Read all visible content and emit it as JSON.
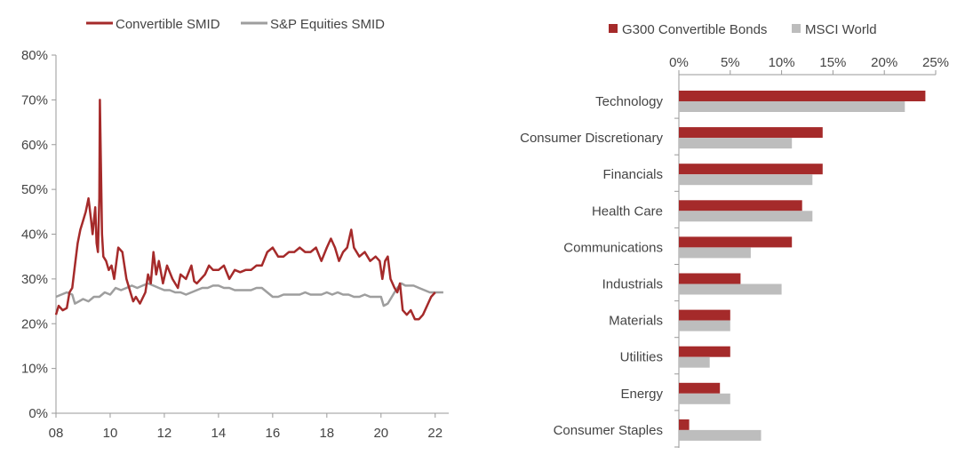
{
  "colors": {
    "convertible": "#a52a2a",
    "equities": "#9e9e9e",
    "axis": "#9a9a9a",
    "text": "#444444"
  },
  "chart_data": [
    {
      "type": "line",
      "title": "",
      "xlabel": "",
      "ylabel": "",
      "ylim": [
        0,
        80
      ],
      "y_tick_labels": [
        "0%",
        "10%",
        "20%",
        "30%",
        "40%",
        "50%",
        "60%",
        "70%",
        "80%"
      ],
      "y_tick_values": [
        0,
        10,
        20,
        30,
        40,
        50,
        60,
        70,
        80
      ],
      "x_tick_labels": [
        "08",
        "10",
        "12",
        "14",
        "16",
        "18",
        "20",
        "22"
      ],
      "x_tick_values": [
        2008,
        2010,
        2012,
        2014,
        2016,
        2018,
        2020,
        2022
      ],
      "xlim": [
        2008,
        2022.5
      ],
      "grid": false,
      "legend_placement": "top",
      "series": [
        {
          "name": "Convertible SMID",
          "color": "#a52a2a",
          "points": [
            [
              2008.0,
              22
            ],
            [
              2008.1,
              24
            ],
            [
              2008.25,
              23
            ],
            [
              2008.4,
              23.5
            ],
            [
              2008.5,
              27
            ],
            [
              2008.6,
              28
            ],
            [
              2008.7,
              33
            ],
            [
              2008.8,
              38
            ],
            [
              2008.9,
              41
            ],
            [
              2009.0,
              43
            ],
            [
              2009.1,
              45
            ],
            [
              2009.2,
              48
            ],
            [
              2009.3,
              43
            ],
            [
              2009.35,
              40
            ],
            [
              2009.45,
              46
            ],
            [
              2009.5,
              38
            ],
            [
              2009.55,
              36
            ],
            [
              2009.6,
              48
            ],
            [
              2009.62,
              70
            ],
            [
              2009.66,
              55
            ],
            [
              2009.7,
              40
            ],
            [
              2009.75,
              35
            ],
            [
              2009.85,
              34
            ],
            [
              2009.95,
              32
            ],
            [
              2010.05,
              33
            ],
            [
              2010.15,
              30
            ],
            [
              2010.3,
              37
            ],
            [
              2010.45,
              36
            ],
            [
              2010.6,
              30
            ],
            [
              2010.75,
              27
            ],
            [
              2010.85,
              25
            ],
            [
              2010.95,
              26
            ],
            [
              2011.1,
              24.5
            ],
            [
              2011.3,
              27
            ],
            [
              2011.4,
              31
            ],
            [
              2011.5,
              29
            ],
            [
              2011.6,
              36
            ],
            [
              2011.7,
              31
            ],
            [
              2011.8,
              34
            ],
            [
              2011.95,
              29
            ],
            [
              2012.1,
              33
            ],
            [
              2012.3,
              30
            ],
            [
              2012.5,
              28
            ],
            [
              2012.6,
              31
            ],
            [
              2012.8,
              30
            ],
            [
              2013.0,
              33
            ],
            [
              2013.1,
              29.5
            ],
            [
              2013.2,
              29
            ],
            [
              2013.35,
              30
            ],
            [
              2013.5,
              31
            ],
            [
              2013.65,
              33
            ],
            [
              2013.8,
              32
            ],
            [
              2014.0,
              32
            ],
            [
              2014.2,
              33
            ],
            [
              2014.4,
              30
            ],
            [
              2014.6,
              32
            ],
            [
              2014.8,
              31.5
            ],
            [
              2015.0,
              32
            ],
            [
              2015.2,
              32
            ],
            [
              2015.4,
              33
            ],
            [
              2015.6,
              33
            ],
            [
              2015.8,
              36
            ],
            [
              2016.0,
              37
            ],
            [
              2016.2,
              35
            ],
            [
              2016.4,
              35
            ],
            [
              2016.6,
              36
            ],
            [
              2016.8,
              36
            ],
            [
              2017.0,
              37
            ],
            [
              2017.2,
              36
            ],
            [
              2017.4,
              36
            ],
            [
              2017.6,
              37
            ],
            [
              2017.8,
              34
            ],
            [
              2018.0,
              37
            ],
            [
              2018.15,
              39
            ],
            [
              2018.3,
              37
            ],
            [
              2018.45,
              34
            ],
            [
              2018.6,
              36
            ],
            [
              2018.75,
              37
            ],
            [
              2018.9,
              41
            ],
            [
              2019.0,
              37
            ],
            [
              2019.2,
              35
            ],
            [
              2019.4,
              36
            ],
            [
              2019.6,
              34
            ],
            [
              2019.8,
              35
            ],
            [
              2019.95,
              34
            ],
            [
              2020.05,
              30
            ],
            [
              2020.15,
              34
            ],
            [
              2020.25,
              35
            ],
            [
              2020.35,
              30
            ],
            [
              2020.5,
              28
            ],
            [
              2020.6,
              27
            ],
            [
              2020.7,
              29
            ],
            [
              2020.8,
              23
            ],
            [
              2020.95,
              22
            ],
            [
              2021.1,
              23
            ],
            [
              2021.25,
              21
            ],
            [
              2021.4,
              21
            ],
            [
              2021.55,
              22
            ],
            [
              2021.7,
              24
            ],
            [
              2021.85,
              26
            ],
            [
              2022.0,
              27
            ]
          ]
        },
        {
          "name": "S&P Equities SMID",
          "color": "#9e9e9e",
          "points": [
            [
              2008.0,
              26
            ],
            [
              2008.2,
              26.5
            ],
            [
              2008.4,
              27
            ],
            [
              2008.6,
              26.5
            ],
            [
              2008.7,
              24.5
            ],
            [
              2008.85,
              25
            ],
            [
              2009.0,
              25.5
            ],
            [
              2009.2,
              25
            ],
            [
              2009.4,
              26
            ],
            [
              2009.6,
              26
            ],
            [
              2009.8,
              27
            ],
            [
              2010.0,
              26.5
            ],
            [
              2010.2,
              28
            ],
            [
              2010.4,
              27.5
            ],
            [
              2010.6,
              28
            ],
            [
              2010.8,
              28.5
            ],
            [
              2011.0,
              28
            ],
            [
              2011.2,
              28.5
            ],
            [
              2011.4,
              29
            ],
            [
              2011.6,
              28.5
            ],
            [
              2011.8,
              28
            ],
            [
              2012.0,
              27.5
            ],
            [
              2012.2,
              27.5
            ],
            [
              2012.4,
              27
            ],
            [
              2012.6,
              27
            ],
            [
              2012.8,
              26.5
            ],
            [
              2013.0,
              27
            ],
            [
              2013.2,
              27.5
            ],
            [
              2013.4,
              28
            ],
            [
              2013.6,
              28
            ],
            [
              2013.8,
              28.5
            ],
            [
              2014.0,
              28.5
            ],
            [
              2014.2,
              28
            ],
            [
              2014.4,
              28
            ],
            [
              2014.6,
              27.5
            ],
            [
              2014.8,
              27.5
            ],
            [
              2015.0,
              27.5
            ],
            [
              2015.2,
              27.5
            ],
            [
              2015.4,
              28
            ],
            [
              2015.6,
              28
            ],
            [
              2015.8,
              27
            ],
            [
              2016.0,
              26
            ],
            [
              2016.2,
              26
            ],
            [
              2016.4,
              26.5
            ],
            [
              2016.6,
              26.5
            ],
            [
              2016.8,
              26.5
            ],
            [
              2017.0,
              26.5
            ],
            [
              2017.2,
              27
            ],
            [
              2017.4,
              26.5
            ],
            [
              2017.6,
              26.5
            ],
            [
              2017.8,
              26.5
            ],
            [
              2018.0,
              27
            ],
            [
              2018.2,
              26.5
            ],
            [
              2018.4,
              27
            ],
            [
              2018.6,
              26.5
            ],
            [
              2018.8,
              26.5
            ],
            [
              2019.0,
              26
            ],
            [
              2019.2,
              26
            ],
            [
              2019.4,
              26.5
            ],
            [
              2019.6,
              26
            ],
            [
              2019.8,
              26
            ],
            [
              2020.0,
              26
            ],
            [
              2020.1,
              24
            ],
            [
              2020.25,
              24.5
            ],
            [
              2020.4,
              26
            ],
            [
              2020.5,
              27
            ],
            [
              2020.6,
              28
            ],
            [
              2020.75,
              29
            ],
            [
              2020.9,
              28.5
            ],
            [
              2021.0,
              28.5
            ],
            [
              2021.2,
              28.5
            ],
            [
              2021.4,
              28
            ],
            [
              2021.6,
              27.5
            ],
            [
              2021.8,
              27
            ],
            [
              2022.0,
              27
            ],
            [
              2022.3,
              27
            ]
          ]
        }
      ]
    },
    {
      "type": "bar",
      "orientation": "horizontal",
      "title": "",
      "xlabel": "",
      "ylabel": "",
      "xlim": [
        0,
        25
      ],
      "x_tick_labels": [
        "0%",
        "5%",
        "10%",
        "15%",
        "20%",
        "25%"
      ],
      "x_tick_values": [
        0,
        5,
        10,
        15,
        20,
        25
      ],
      "grid": false,
      "legend_placement": "top",
      "categories": [
        "Technology",
        "Consumer Discretionary",
        "Financials",
        "Health Care",
        "Communications",
        "Industrials",
        "Materials",
        "Utilities",
        "Energy",
        "Consumer Staples"
      ],
      "series": [
        {
          "name": "G300 Convertible Bonds",
          "color": "#a52a2a",
          "values": [
            24,
            14,
            14,
            12,
            11,
            6,
            5,
            5,
            4,
            1
          ]
        },
        {
          "name": "MSCI World",
          "color": "#bdbdbd",
          "values": [
            22,
            11,
            13,
            13,
            7,
            10,
            5,
            3,
            5,
            8
          ]
        }
      ]
    }
  ]
}
